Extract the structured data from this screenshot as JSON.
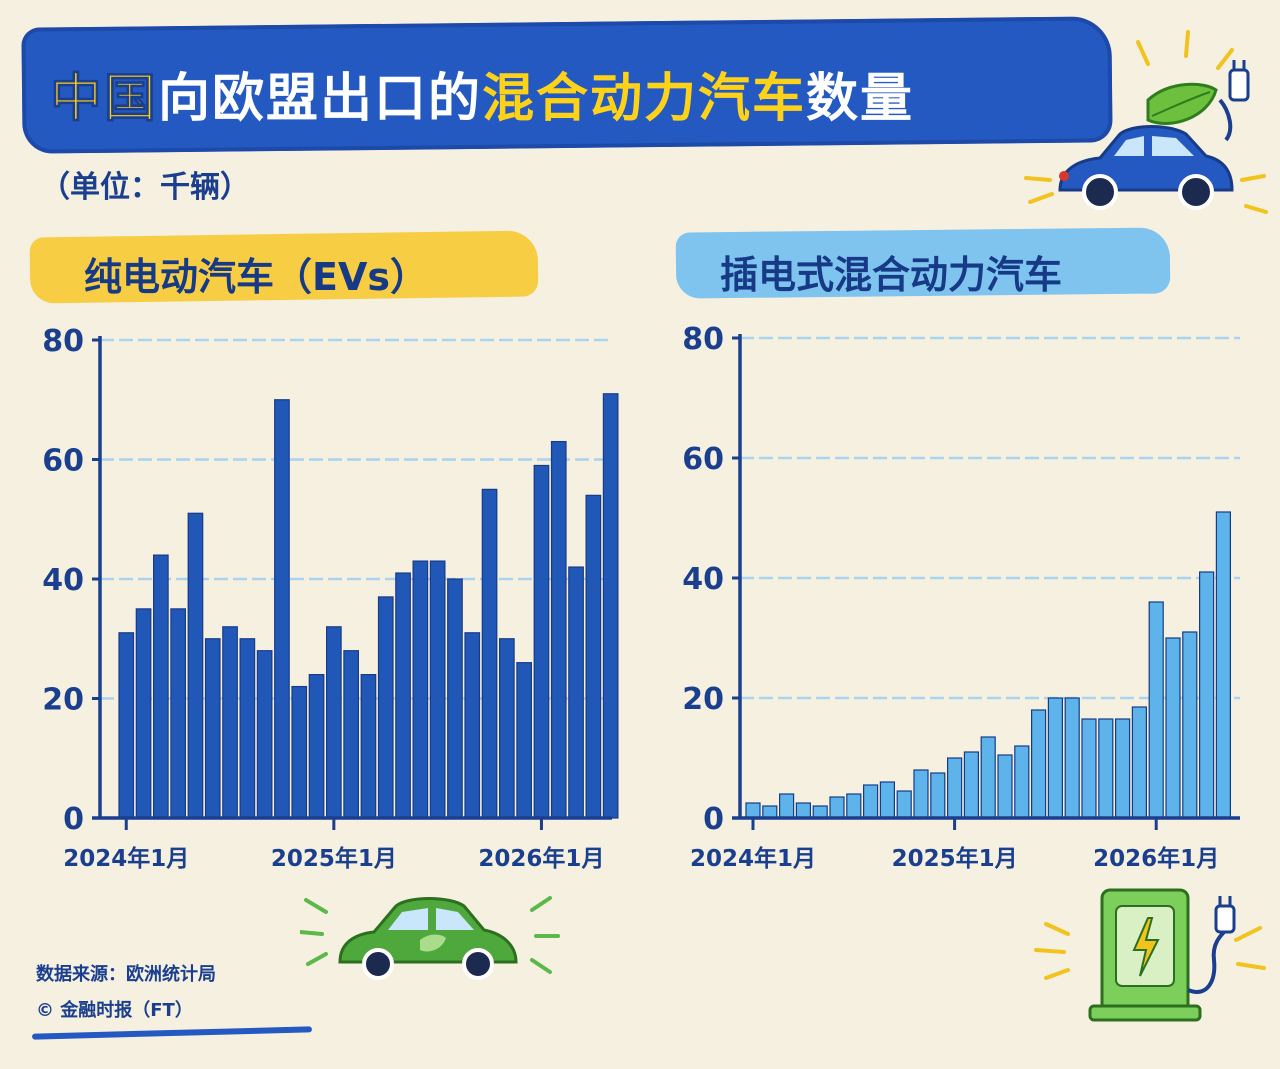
{
  "title": {
    "part1": "中国",
    "part2": "向欧盟出口的",
    "part3": "混合动力汽车",
    "part4": "数量"
  },
  "subtitle": "（单位：千辆）",
  "source": {
    "line1": "数据来源：欧洲统计局",
    "line2": "© 金融时报（FT）"
  },
  "colors": {
    "ev_bar": "#2158b8",
    "phev_bar": "#5db3ea",
    "axis": "#1b3f8f",
    "grid": "#a9d3ef",
    "title_bg": "#2459c2",
    "highlight": "#ffd21a"
  },
  "icons": [
    "car-leaf-plug-icon",
    "green-car-icon",
    "charger-icon"
  ],
  "chart_data": [
    {
      "type": "bar",
      "title": "纯电动汽车（EVs）",
      "ylim": [
        0,
        80
      ],
      "yticks": [
        "0",
        "20",
        "40",
        "60",
        "80"
      ],
      "xticks": [
        {
          "label": "2024年1月",
          "index": 0
        },
        {
          "label": "2025年1月",
          "index": 12
        },
        {
          "label": "2026年1月",
          "index": 24
        }
      ],
      "grid": true,
      "values": [
        31,
        35,
        44,
        35,
        51,
        30,
        32,
        30,
        28,
        70,
        22,
        24,
        32,
        28,
        24,
        37,
        41,
        43,
        43,
        40,
        31,
        55,
        30,
        26,
        59,
        63,
        42,
        54,
        71
      ]
    },
    {
      "type": "bar",
      "title": "插电式混合动力汽车",
      "ylim": [
        0,
        80
      ],
      "yticks": [
        "0",
        "20",
        "40",
        "60",
        "80"
      ],
      "xticks": [
        {
          "label": "2024年1月",
          "index": 0
        },
        {
          "label": "2025年1月",
          "index": 12
        },
        {
          "label": "2026年1月",
          "index": 24
        }
      ],
      "grid": true,
      "values": [
        2.5,
        2,
        4,
        2.5,
        2,
        3.5,
        4,
        5.5,
        6,
        4.5,
        8,
        7.5,
        10,
        11,
        13.5,
        10.5,
        12,
        18,
        20,
        20,
        16.5,
        16.5,
        16.5,
        18.5,
        36,
        30,
        31,
        41,
        51
      ]
    }
  ]
}
